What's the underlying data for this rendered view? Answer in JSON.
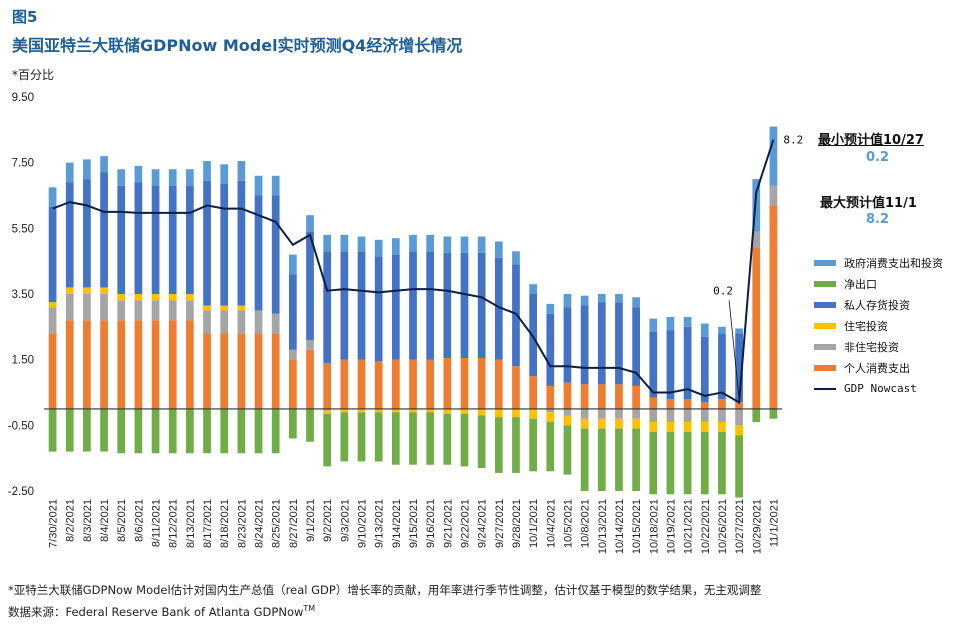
{
  "figure": {
    "label": "图5",
    "title": "美国亚特兰大联储GDPNow Model实时预测Q4经济增长情况",
    "unit": "*百分比",
    "footnote": "*亚特兰大联储GDPNow Model估计对国内生产总值（real GDP）增长率的贡献，用年率进行季节性调整，估计仅基于模型的数学结果，无主观调整",
    "source_text": "数据来源：Federal Reserve Bank of Atlanta GDPNow",
    "source_sup": "TM"
  },
  "annotations": {
    "min_label": "最小预计值10/27",
    "min_value": "0.2",
    "max_label": "最大预计值11/1",
    "max_value": "8.2",
    "min_point_label": "0.2",
    "max_point_label": "8.2"
  },
  "colors": {
    "gov": "#5b9bd5",
    "netexp": "#70ad47",
    "private_inv": "#4472c4",
    "res_inv": "#ffc000",
    "nonres_inv": "#a5a5a5",
    "pce": "#ed7d31",
    "nowcast": "#0b1e4a"
  },
  "chart_data": {
    "type": "bar",
    "stacked": true,
    "ylim": [
      -2.5,
      9.5
    ],
    "yticks": [
      "9.50",
      "7.50",
      "5.50",
      "3.50",
      "1.50",
      "-0.50",
      "-2.50"
    ],
    "ytick_values": [
      9.5,
      7.5,
      5.5,
      3.5,
      1.5,
      -0.5,
      -2.5
    ],
    "legend_position": "right",
    "categories": [
      "7/30/2021",
      "8/2/2021",
      "8/3/2021",
      "8/4/2021",
      "8/5/2021",
      "8/6/2021",
      "8/11/2021",
      "8/12/2021",
      "8/13/2021",
      "8/17/2021",
      "8/18/2021",
      "8/23/2021",
      "8/24/2021",
      "8/25/2021",
      "8/27/2021",
      "9/1/2021",
      "9/2/2021",
      "9/3/2021",
      "9/10/2021",
      "9/13/2021",
      "9/14/2021",
      "9/15/2021",
      "9/16/2021",
      "9/21/2021",
      "9/22/2021",
      "9/24/2021",
      "9/27/2021",
      "9/28/2021",
      "10/1/2021",
      "10/4/2021",
      "10/5/2021",
      "10/8/2021",
      "10/13/2021",
      "10/14/2021",
      "10/15/2021",
      "10/18/2021",
      "10/19/2021",
      "10/21/2021",
      "10/22/2021",
      "10/26/2021",
      "10/27/2021",
      "10/29/2021",
      "11/1/2021"
    ],
    "xticks_shown": [
      "7/30/2021",
      "8/2/2021",
      "8/3/2021",
      "8/4/2021",
      "8/5/2021",
      "8/6/2021",
      "8/11/2021",
      "8/12/2021",
      "8/13/2021",
      "8/17/2021",
      "8/18/2021",
      "8/23/2021",
      "8/24/2021",
      "8/25/2021",
      "8/27/2021",
      "9/1/2021",
      "9/2/2021",
      "9/3/2021",
      "9/10/2021",
      "9/13/2021",
      "9/14/2021",
      "9/15/2021",
      "9/16/2021",
      "9/21/2021",
      "9/22/2021",
      "9/24/2021",
      "9/27/2021",
      "9/28/2021",
      "10/1/2021",
      "10/4/2021",
      "10/5/2021",
      "10/8/2021",
      "10/13/2021",
      "10/14/2021",
      "10/15/2021",
      "10/18/2021",
      "10/19/2021",
      "10/21/2021",
      "10/22/2021",
      "10/26/2021",
      "10/27/2021",
      "10/29/2021",
      "11/1/2021"
    ],
    "series": [
      {
        "name": "个人消费支出",
        "key": "pce",
        "values": [
          2.3,
          2.7,
          2.7,
          2.7,
          2.7,
          2.7,
          2.7,
          2.7,
          2.7,
          2.3,
          2.3,
          2.3,
          2.3,
          2.3,
          1.5,
          1.8,
          1.4,
          1.5,
          1.5,
          1.45,
          1.5,
          1.5,
          1.5,
          1.55,
          1.55,
          1.55,
          1.5,
          1.3,
          1.0,
          0.7,
          0.8,
          0.75,
          0.75,
          0.75,
          0.7,
          0.35,
          0.3,
          0.3,
          0.2,
          0.3,
          0.2,
          4.9,
          6.2
        ]
      },
      {
        "name": "非住宅投资",
        "key": "nonres_inv",
        "values": [
          0.8,
          0.8,
          0.8,
          0.8,
          0.6,
          0.6,
          0.6,
          0.6,
          0.6,
          0.7,
          0.7,
          0.7,
          0.7,
          0.6,
          0.3,
          0.3,
          -0.05,
          0.0,
          0.0,
          0.0,
          0.0,
          0.0,
          0.0,
          0.0,
          0.0,
          0.0,
          0.0,
          0.0,
          0.0,
          -0.1,
          -0.2,
          -0.3,
          -0.3,
          -0.3,
          -0.3,
          -0.4,
          -0.4,
          -0.4,
          -0.4,
          -0.4,
          -0.5,
          0.5,
          0.6
        ]
      },
      {
        "name": "住宅投资",
        "key": "res_inv",
        "values": [
          0.15,
          0.2,
          0.2,
          0.2,
          0.2,
          0.2,
          0.2,
          0.2,
          0.2,
          0.15,
          0.15,
          0.15,
          0.0,
          0.0,
          0.0,
          0.0,
          -0.1,
          -0.1,
          -0.1,
          -0.1,
          -0.1,
          -0.1,
          -0.1,
          -0.15,
          -0.15,
          -0.2,
          -0.25,
          -0.25,
          -0.3,
          -0.3,
          -0.3,
          -0.3,
          -0.3,
          -0.3,
          -0.3,
          -0.3,
          -0.3,
          -0.3,
          -0.3,
          -0.3,
          -0.3,
          0.0,
          0.0
        ]
      },
      {
        "name": "私人存货投资",
        "key": "private_inv",
        "values": [
          2.9,
          3.2,
          3.3,
          3.5,
          3.3,
          3.4,
          3.3,
          3.3,
          3.3,
          3.8,
          3.7,
          3.8,
          3.5,
          3.6,
          2.3,
          3.3,
          3.4,
          3.3,
          3.3,
          3.2,
          3.2,
          3.3,
          3.3,
          3.2,
          3.2,
          3.2,
          3.1,
          3.1,
          2.5,
          2.2,
          2.3,
          2.4,
          2.5,
          2.5,
          2.4,
          2.0,
          2.1,
          2.2,
          2.0,
          2.0,
          2.1,
          0.0,
          0.0
        ]
      },
      {
        "name": "政府消费支出和投资",
        "key": "gov",
        "values": [
          0.6,
          0.6,
          0.6,
          0.5,
          0.5,
          0.5,
          0.5,
          0.5,
          0.5,
          0.6,
          0.6,
          0.6,
          0.6,
          0.6,
          0.6,
          0.5,
          0.5,
          0.5,
          0.45,
          0.5,
          0.5,
          0.5,
          0.5,
          0.5,
          0.5,
          0.5,
          0.5,
          0.4,
          0.3,
          0.3,
          0.4,
          0.3,
          0.25,
          0.25,
          0.3,
          0.4,
          0.4,
          0.3,
          0.4,
          0.2,
          0.15,
          1.6,
          1.8
        ]
      },
      {
        "name": "净出口",
        "key": "netexp",
        "values": [
          -1.3,
          -1.3,
          -1.3,
          -1.3,
          -1.35,
          -1.35,
          -1.35,
          -1.35,
          -1.35,
          -1.35,
          -1.35,
          -1.35,
          -1.35,
          -1.35,
          -0.9,
          -1.0,
          -1.6,
          -1.5,
          -1.5,
          -1.5,
          -1.6,
          -1.6,
          -1.6,
          -1.55,
          -1.6,
          -1.6,
          -1.7,
          -1.7,
          -1.6,
          -1.5,
          -1.5,
          -1.9,
          -1.9,
          -1.9,
          -1.9,
          -1.9,
          -1.9,
          -1.9,
          -1.9,
          -1.9,
          -1.9,
          -0.4,
          -0.3
        ]
      },
      {
        "name": "GDP Nowcast",
        "key": "nowcast",
        "type": "line",
        "values": [
          6.1,
          6.3,
          6.2,
          6.0,
          6.0,
          5.97,
          5.97,
          5.97,
          5.97,
          6.2,
          6.1,
          6.1,
          5.9,
          5.7,
          5.0,
          5.3,
          3.6,
          3.65,
          3.6,
          3.55,
          3.6,
          3.65,
          3.65,
          3.6,
          3.5,
          3.4,
          3.1,
          2.9,
          2.2,
          1.3,
          1.3,
          1.25,
          1.25,
          1.25,
          1.1,
          0.5,
          0.5,
          0.6,
          0.4,
          0.5,
          0.2,
          6.6,
          8.2
        ]
      }
    ]
  },
  "legend": [
    {
      "label": "政府消费支出和投资",
      "key": "gov",
      "kind": "bar"
    },
    {
      "label": "净出口",
      "key": "netexp",
      "kind": "bar"
    },
    {
      "label": "私人存货投资",
      "key": "private_inv",
      "kind": "bar"
    },
    {
      "label": "住宅投资",
      "key": "res_inv",
      "kind": "bar"
    },
    {
      "label": "非住宅投资",
      "key": "nonres_inv",
      "kind": "bar"
    },
    {
      "label": "个人消费支出",
      "key": "pce",
      "kind": "bar"
    },
    {
      "label": "GDP Nowcast",
      "key": "nowcast",
      "kind": "line"
    }
  ]
}
